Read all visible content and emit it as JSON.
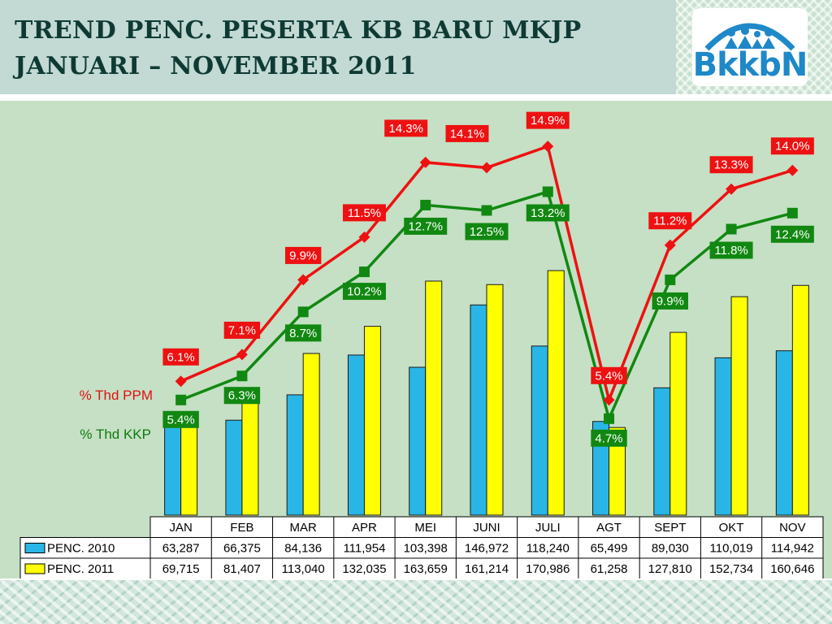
{
  "title": {
    "line1": "TREND PENC. PESERTA KB BARU MKJP",
    "line2": "JANUARI – NOVEMBER 2011"
  },
  "logo": {
    "text": "BkkbN",
    "icon": "family-figures-arch-logo"
  },
  "colors": {
    "penc2010": "#29b6e6",
    "penc2011": "#ffff00",
    "ppm_line": "#ee1111",
    "kkp_line": "#118811",
    "panel_bg": "#c5e0c4"
  },
  "chart_data": {
    "type": "bar",
    "categories": [
      "JAN",
      "FEB",
      "MAR",
      "APR",
      "MEI",
      "JUNI",
      "JULI",
      "AGT",
      "SEPT",
      "OKT",
      "NOV"
    ],
    "series": [
      {
        "name": "PENC. 2010",
        "type": "bar",
        "values": [
          63287,
          66375,
          84136,
          111954,
          103398,
          146972,
          118240,
          65499,
          89030,
          110019,
          114942
        ],
        "labels": [
          "63,287",
          "66,375",
          "84,136",
          "111,954",
          "103,398",
          "146,972",
          "118,240",
          "65,499",
          "89,030",
          "110,019",
          "114,942"
        ]
      },
      {
        "name": "PENC. 2011",
        "type": "bar",
        "values": [
          69715,
          81407,
          113040,
          132035,
          163659,
          161214,
          170986,
          61258,
          127810,
          152734,
          160646
        ],
        "labels": [
          "69,715",
          "81,407",
          "113,040",
          "132,035",
          "163,659",
          "161,214",
          "170,986",
          "61,258",
          "127,810",
          "152,734",
          "160,646"
        ]
      },
      {
        "name": "% Thd PPM",
        "type": "line",
        "values": [
          6.1,
          7.1,
          9.9,
          11.5,
          14.3,
          14.1,
          14.9,
          5.4,
          11.2,
          13.3,
          14.0
        ],
        "labels": [
          "6.1%",
          "7.1%",
          "9.9%",
          "11.5%",
          "14.3%",
          "14.1%",
          "14.9%",
          "5.4%",
          "11.2%",
          "13.3%",
          "14.0%"
        ]
      },
      {
        "name": "% Thd KKP",
        "type": "line",
        "values": [
          5.4,
          6.3,
          8.7,
          10.2,
          12.7,
          12.5,
          13.2,
          4.7,
          9.9,
          11.8,
          12.4
        ],
        "labels": [
          "5.4%",
          "6.3%",
          "8.7%",
          "10.2%",
          "12.7%",
          "12.5%",
          "13.2%",
          "4.7%",
          "9.9%",
          "11.8%",
          "12.4%"
        ]
      }
    ],
    "bar_ylim": [
      0,
      185000
    ],
    "line_ylim": [
      2,
      16
    ],
    "grid": false,
    "legend": "data-table-left"
  }
}
